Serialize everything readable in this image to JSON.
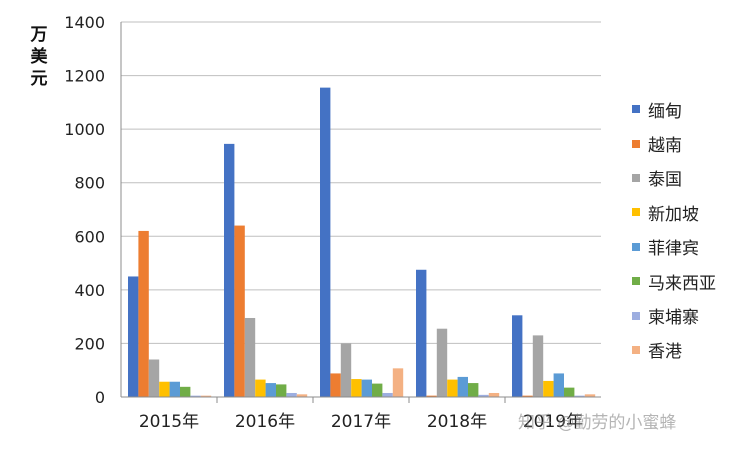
{
  "chart_data": {
    "type": "bar",
    "title": "",
    "xlabel": "",
    "ylabel": "万美元",
    "ylim": [
      0,
      1400
    ],
    "yticks": [
      0,
      200,
      400,
      600,
      800,
      1000,
      1200,
      1400
    ],
    "grid": true,
    "legend_position": "right",
    "categories": [
      "2015年",
      "2016年",
      "2017年",
      "2018年",
      "2019年"
    ],
    "series": [
      {
        "name": "缅甸",
        "color": "#4472C4",
        "values": [
          450,
          945,
          1155,
          475,
          305
        ]
      },
      {
        "name": "越南",
        "color": "#ED7D31",
        "values": [
          620,
          640,
          88,
          5,
          5
        ]
      },
      {
        "name": "泰国",
        "color": "#A5A5A5",
        "values": [
          140,
          295,
          200,
          255,
          230
        ]
      },
      {
        "name": "新加坡",
        "color": "#FFC000",
        "values": [
          57,
          65,
          67,
          65,
          60
        ]
      },
      {
        "name": "菲律宾",
        "color": "#5B9BD5",
        "values": [
          57,
          52,
          65,
          75,
          88
        ]
      },
      {
        "name": "马来西亚",
        "color": "#70AD47",
        "values": [
          38,
          47,
          50,
          52,
          35
        ]
      },
      {
        "name": "柬埔寨",
        "color": "#9DAEE0",
        "values": [
          5,
          15,
          15,
          8,
          5
        ]
      },
      {
        "name": "香港",
        "color": "#F4B183",
        "values": [
          5,
          10,
          107,
          15,
          10
        ]
      }
    ]
  },
  "watermark": "知乎 @勤劳的小蜜蜂"
}
